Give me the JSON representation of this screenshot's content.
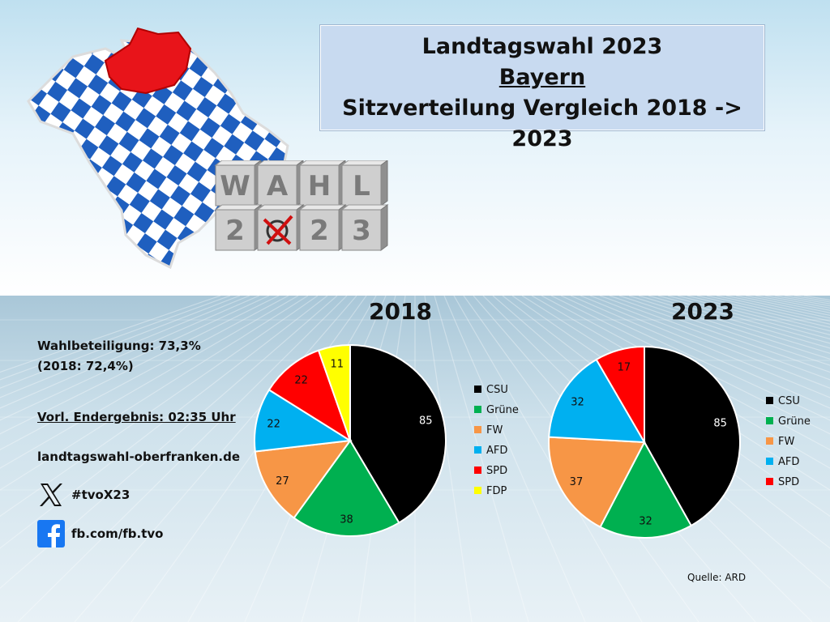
{
  "title": {
    "line1": "Landtagswahl 2023",
    "line2": "Bayern",
    "line3": "Sitzverteilung Vergleich 2018 -> 2023"
  },
  "logo": {
    "cube_letters": [
      "W",
      "A",
      "H",
      "L"
    ],
    "cube_digits": [
      "2",
      "",
      "2",
      "3"
    ]
  },
  "info": {
    "turnout": "Wahlbeteiligung: 73,3%",
    "turnout_prev": "(2018: 72,4%)",
    "result": "Vorl. Endergebnis: 02:35 Uhr",
    "website": "landtagswahl-oberfranken.de",
    "x_handle": "#tvoX23",
    "facebook": "fb.com/fb.tvo"
  },
  "source": "Quelle: ARD",
  "colors": {
    "CSU": "#000000",
    "Grüne": "#00b050",
    "FW": "#f79646",
    "AFD": "#00b0f0",
    "SPD": "#ff0000",
    "FDP": "#ffff00"
  },
  "chart_data": [
    {
      "type": "pie",
      "title": "2018",
      "categories": [
        "CSU",
        "Grüne",
        "FW",
        "AFD",
        "SPD",
        "FDP"
      ],
      "values": [
        85,
        38,
        27,
        22,
        22,
        11
      ],
      "legend": "right"
    },
    {
      "type": "pie",
      "title": "2023",
      "categories": [
        "CSU",
        "Grüne",
        "FW",
        "AFD",
        "SPD"
      ],
      "values": [
        85,
        32,
        37,
        32,
        17
      ],
      "legend": "right"
    }
  ]
}
